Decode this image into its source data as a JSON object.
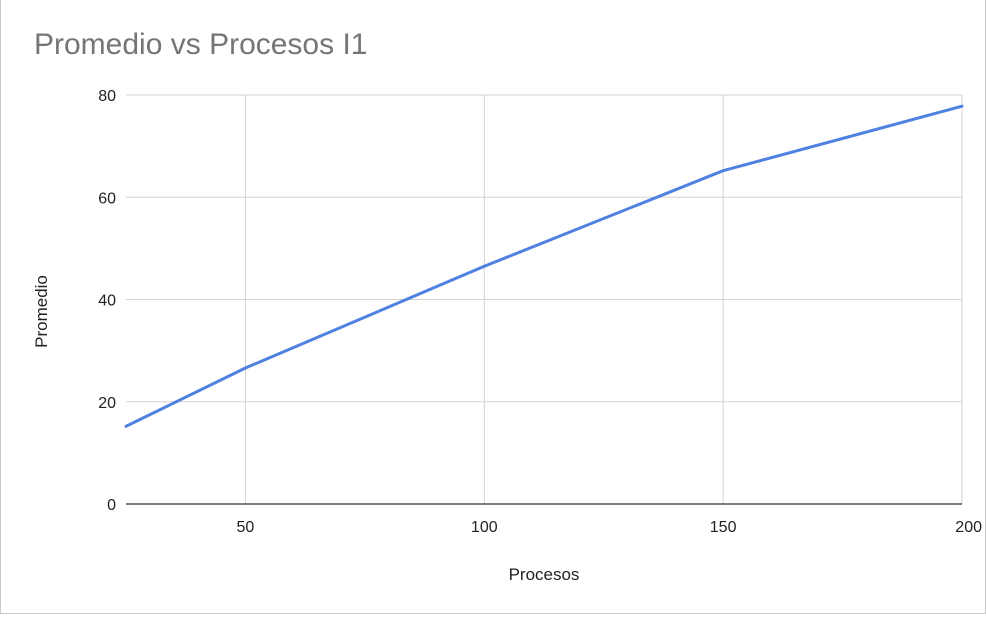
{
  "chart_data": {
    "type": "line",
    "title": "Promedio vs Procesos I1",
    "xlabel": "Procesos",
    "ylabel": "Promedio",
    "xlim": [
      25,
      200
    ],
    "ylim": [
      0,
      80
    ],
    "x_ticks": [
      50,
      100,
      150,
      200
    ],
    "y_ticks": [
      0,
      20,
      40,
      60,
      80
    ],
    "grid": true,
    "legend": "none",
    "series": [
      {
        "color": "#4f81e0",
        "x": [
          25,
          50,
          100,
          150,
          200
        ],
        "y": [
          15.2,
          26.6,
          46.5,
          65.2,
          77.8
        ]
      }
    ]
  }
}
